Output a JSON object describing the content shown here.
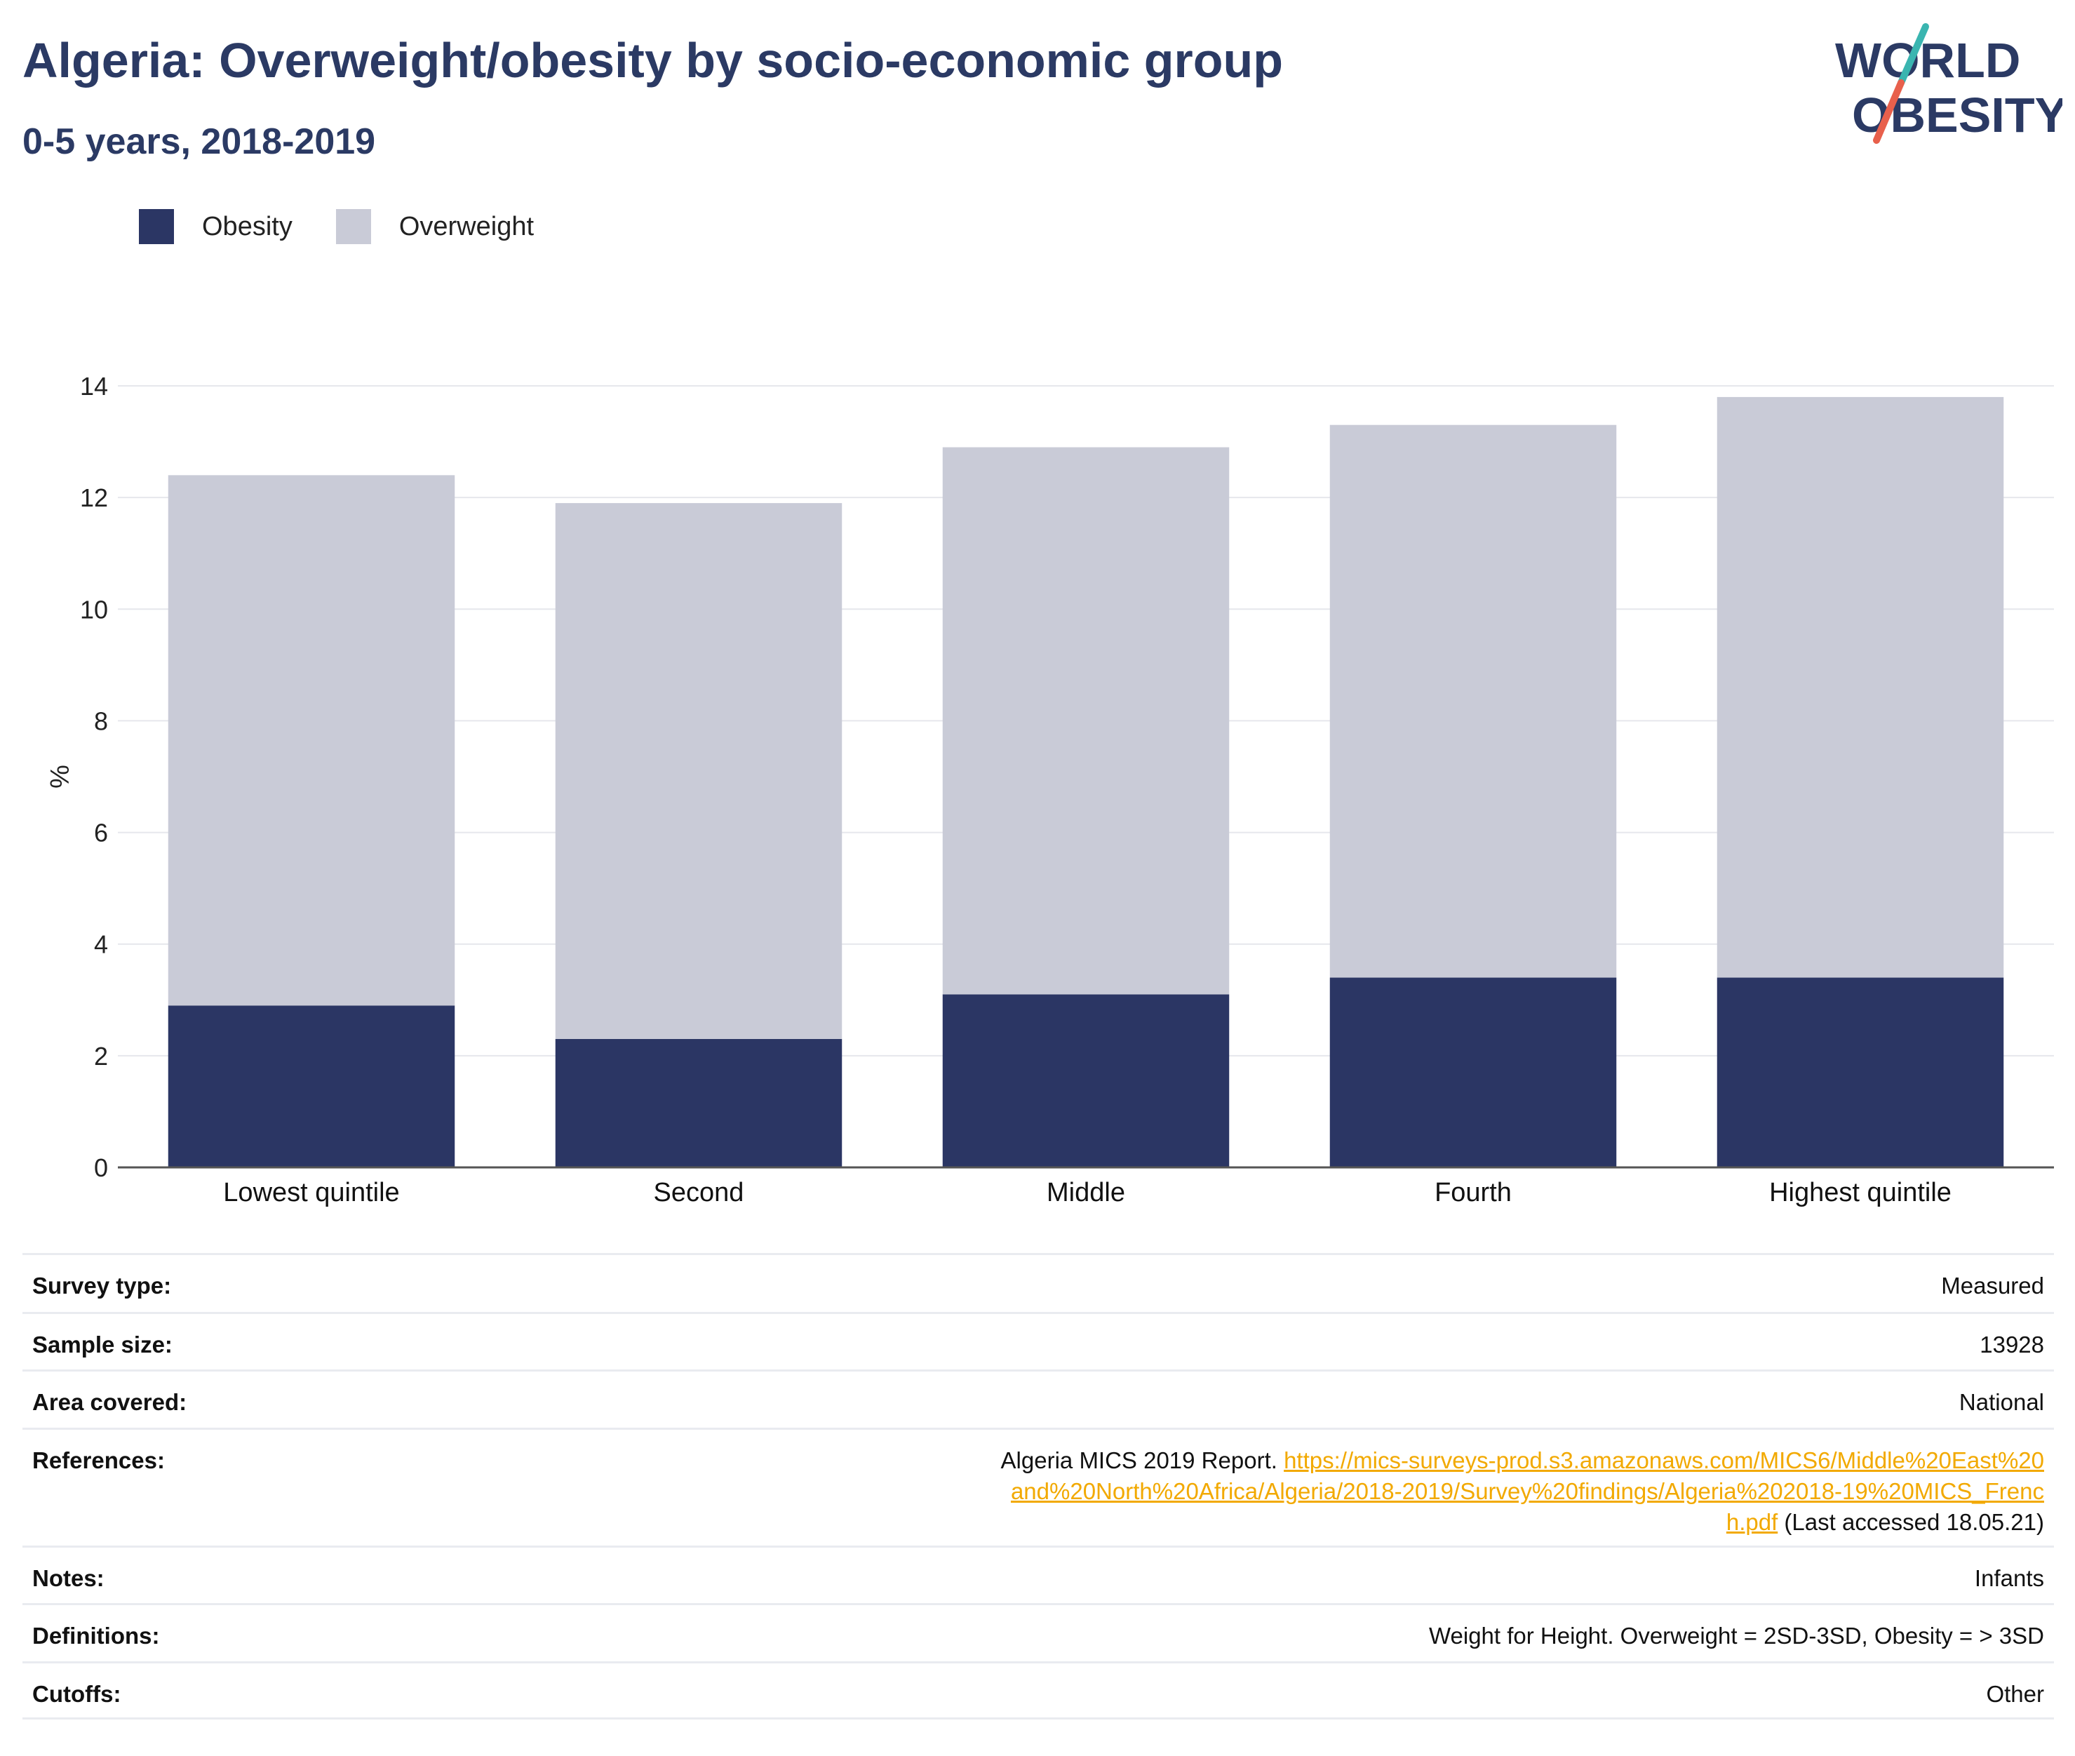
{
  "header": {
    "title": "Algeria: Overweight/obesity by socio-economic group",
    "subtitle": "0-5 years, 2018-2019"
  },
  "logo": {
    "line1": "WORLD",
    "line2": "OBESITY",
    "colors": {
      "text": "#2b3a64",
      "slash_top": "#3ab5b0",
      "slash_bottom": "#e8604c"
    }
  },
  "legend": [
    {
      "label": "Obesity",
      "color": "#2b3664"
    },
    {
      "label": "Overweight",
      "color": "#c9cbd7"
    }
  ],
  "chart_data": {
    "type": "bar",
    "stacked": true,
    "categories": [
      "Lowest quintile",
      "Second",
      "Middle",
      "Fourth",
      "Highest quintile"
    ],
    "series": [
      {
        "name": "Obesity",
        "color": "#2b3664",
        "values": [
          2.9,
          2.3,
          3.1,
          3.4,
          3.4
        ]
      },
      {
        "name": "Overweight",
        "color": "#c9cbd7",
        "values": [
          9.5,
          9.6,
          9.8,
          9.9,
          10.4
        ]
      }
    ],
    "ylabel": "%",
    "ylim": [
      0,
      14
    ],
    "yticks": [
      0,
      2,
      4,
      6,
      8,
      10,
      12,
      14
    ],
    "grid": true,
    "legend_position": "top-left"
  },
  "meta": {
    "survey_type": {
      "label": "Survey type:",
      "value": "Measured"
    },
    "sample_size": {
      "label": "Sample size:",
      "value": "13928"
    },
    "area_covered": {
      "label": "Area covered:",
      "value": "National"
    },
    "references": {
      "label": "References:",
      "prefix": "Algeria MICS 2019 Report. ",
      "link": "https://mics-surveys-prod.s3.amazonaws.com/MICS6/Middle%20East%20and%20North%20Africa/Algeria/2018-2019/Survey%20findings/Algeria%202018-19%20MICS_French.pdf",
      "suffix": " (Last accessed 18.05.21)"
    },
    "notes": {
      "label": "Notes:",
      "value": "Infants"
    },
    "definitions": {
      "label": "Definitions:",
      "value": "Weight for Height. Overweight = 2SD-3SD, Obesity = > 3SD"
    },
    "cutoffs": {
      "label": "Cutoffs:",
      "value": "Other"
    }
  }
}
